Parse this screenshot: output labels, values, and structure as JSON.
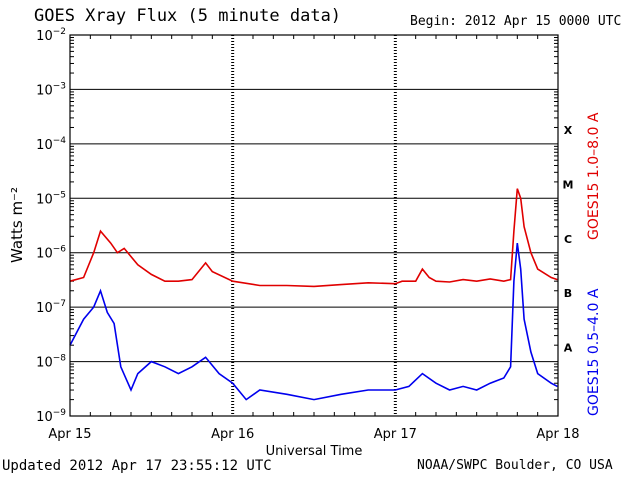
{
  "header": {
    "title": "GOES Xray Flux (5 minute data)",
    "begin": "Begin:  2012 Apr 15 0000 UTC"
  },
  "footer": {
    "updated": "Updated 2012 Apr 17 23:55:12 UTC",
    "credit": "NOAA/SWPC Boulder, CO USA"
  },
  "colors": {
    "long_channel": "#e00000",
    "short_channel": "#0000ee",
    "grid": "#000000"
  },
  "chart_data": {
    "type": "line",
    "title": "GOES Xray Flux (5 minute data)",
    "xlabel": "Universal Time",
    "ylabel": "Watts m⁻²",
    "yscale": "log",
    "ylim": [
      1e-09,
      0.01
    ],
    "xlim": [
      "2012-04-15 00:00",
      "2012-04-18 00:00"
    ],
    "grid": true,
    "yticks": [
      {
        "base": "10",
        "exp": "−9"
      },
      {
        "base": "10",
        "exp": "−8"
      },
      {
        "base": "10",
        "exp": "−7"
      },
      {
        "base": "10",
        "exp": "−6"
      },
      {
        "base": "10",
        "exp": "−5"
      },
      {
        "base": "10",
        "exp": "−4"
      },
      {
        "base": "10",
        "exp": "−3"
      },
      {
        "base": "10",
        "exp": "−2"
      }
    ],
    "xticks": [
      {
        "label": "Apr 15",
        "t": "2012-04-15 00:00"
      },
      {
        "label": "Apr 16",
        "t": "2012-04-16 00:00"
      },
      {
        "label": "Apr 17",
        "t": "2012-04-17 00:00"
      },
      {
        "label": "Apr 18",
        "t": "2012-04-18 00:00"
      }
    ],
    "flare_classes": [
      {
        "label": "A",
        "flux": 1.8e-08
      },
      {
        "label": "B",
        "flux": 1.8e-07
      },
      {
        "label": "C",
        "flux": 1.8e-06
      },
      {
        "label": "M",
        "flux": 1.8e-05
      },
      {
        "label": "X",
        "flux": 0.00018
      }
    ],
    "series": [
      {
        "name": "GOES15 1.0–8.0 A",
        "color": "#e00000",
        "points": [
          [
            "2012-04-15 00:00",
            3e-07
          ],
          [
            "2012-04-15 02:00",
            3.5e-07
          ],
          [
            "2012-04-15 03:30",
            1e-06
          ],
          [
            "2012-04-15 04:30",
            2.5e-06
          ],
          [
            "2012-04-15 06:00",
            1.5e-06
          ],
          [
            "2012-04-15 07:00",
            1e-06
          ],
          [
            "2012-04-15 08:00",
            1.2e-06
          ],
          [
            "2012-04-15 10:00",
            6e-07
          ],
          [
            "2012-04-15 12:00",
            4e-07
          ],
          [
            "2012-04-15 14:00",
            3e-07
          ],
          [
            "2012-04-15 16:00",
            3e-07
          ],
          [
            "2012-04-15 18:00",
            3.2e-07
          ],
          [
            "2012-04-15 20:00",
            6.5e-07
          ],
          [
            "2012-04-15 21:00",
            4.5e-07
          ],
          [
            "2012-04-16 00:00",
            3e-07
          ],
          [
            "2012-04-16 04:00",
            2.5e-07
          ],
          [
            "2012-04-16 08:00",
            2.5e-07
          ],
          [
            "2012-04-16 12:00",
            2.4e-07
          ],
          [
            "2012-04-16 16:00",
            2.6e-07
          ],
          [
            "2012-04-16 20:00",
            2.8e-07
          ],
          [
            "2012-04-17 00:00",
            2.7e-07
          ],
          [
            "2012-04-17 01:00",
            3e-07
          ],
          [
            "2012-04-17 03:00",
            3e-07
          ],
          [
            "2012-04-17 04:00",
            5e-07
          ],
          [
            "2012-04-17 05:00",
            3.5e-07
          ],
          [
            "2012-04-17 06:00",
            3e-07
          ],
          [
            "2012-04-17 08:00",
            2.9e-07
          ],
          [
            "2012-04-17 10:00",
            3.2e-07
          ],
          [
            "2012-04-17 12:00",
            3e-07
          ],
          [
            "2012-04-17 14:00",
            3.3e-07
          ],
          [
            "2012-04-17 16:00",
            3e-07
          ],
          [
            "2012-04-17 17:00",
            3.2e-07
          ],
          [
            "2012-04-17 17:30",
            2.5e-06
          ],
          [
            "2012-04-17 18:00",
            1.5e-05
          ],
          [
            "2012-04-17 18:30",
            1e-05
          ],
          [
            "2012-04-17 19:00",
            3e-06
          ],
          [
            "2012-04-17 20:00",
            1e-06
          ],
          [
            "2012-04-17 21:00",
            5e-07
          ],
          [
            "2012-04-17 23:00",
            3.5e-07
          ],
          [
            "2012-04-17 23:55",
            3.2e-07
          ]
        ]
      },
      {
        "name": "GOES15 0.5–4.0 A",
        "color": "#0000ee",
        "points": [
          [
            "2012-04-15 00:00",
            2e-08
          ],
          [
            "2012-04-15 02:00",
            6e-08
          ],
          [
            "2012-04-15 03:30",
            1e-07
          ],
          [
            "2012-04-15 04:30",
            2e-07
          ],
          [
            "2012-04-15 05:30",
            8e-08
          ],
          [
            "2012-04-15 06:30",
            5e-08
          ],
          [
            "2012-04-15 07:30",
            8e-09
          ],
          [
            "2012-04-15 09:00",
            3e-09
          ],
          [
            "2012-04-15 10:00",
            6e-09
          ],
          [
            "2012-04-15 12:00",
            1e-08
          ],
          [
            "2012-04-15 14:00",
            8e-09
          ],
          [
            "2012-04-15 16:00",
            6e-09
          ],
          [
            "2012-04-15 18:00",
            8e-09
          ],
          [
            "2012-04-15 20:00",
            1.2e-08
          ],
          [
            "2012-04-15 22:00",
            6e-09
          ],
          [
            "2012-04-16 00:00",
            4e-09
          ],
          [
            "2012-04-16 02:00",
            2e-09
          ],
          [
            "2012-04-16 04:00",
            3e-09
          ],
          [
            "2012-04-16 08:00",
            2.5e-09
          ],
          [
            "2012-04-16 12:00",
            2e-09
          ],
          [
            "2012-04-16 16:00",
            2.5e-09
          ],
          [
            "2012-04-16 20:00",
            3e-09
          ],
          [
            "2012-04-17 00:00",
            3e-09
          ],
          [
            "2012-04-17 02:00",
            3.5e-09
          ],
          [
            "2012-04-17 04:00",
            6e-09
          ],
          [
            "2012-04-17 06:00",
            4e-09
          ],
          [
            "2012-04-17 08:00",
            3e-09
          ],
          [
            "2012-04-17 10:00",
            3.5e-09
          ],
          [
            "2012-04-17 12:00",
            3e-09
          ],
          [
            "2012-04-17 14:00",
            4e-09
          ],
          [
            "2012-04-17 16:00",
            5e-09
          ],
          [
            "2012-04-17 17:00",
            8e-09
          ],
          [
            "2012-04-17 17:30",
            3e-07
          ],
          [
            "2012-04-17 18:00",
            1.5e-06
          ],
          [
            "2012-04-17 18:30",
            5e-07
          ],
          [
            "2012-04-17 19:00",
            6e-08
          ],
          [
            "2012-04-17 20:00",
            1.5e-08
          ],
          [
            "2012-04-17 21:00",
            6e-09
          ],
          [
            "2012-04-17 23:00",
            4e-09
          ],
          [
            "2012-04-17 23:55",
            3.5e-09
          ]
        ]
      }
    ]
  }
}
